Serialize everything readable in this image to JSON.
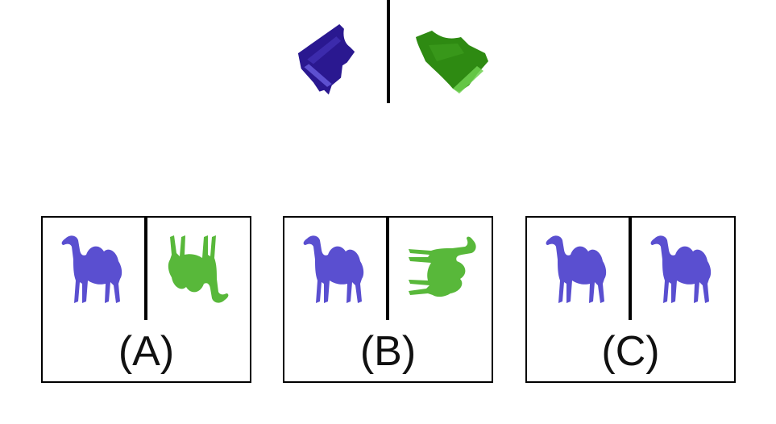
{
  "colors": {
    "blue": "#3a1fa0",
    "blue_light": "#5a4fd0",
    "green": "#2e8a12",
    "green_light": "#5fbf40",
    "camel_blue": "#5a4fd0",
    "camel_green": "#58b83a"
  },
  "reference": {
    "left_icon": "grand-piano-icon",
    "right_icon": "grand-piano-icon"
  },
  "options": [
    {
      "label": "(A)",
      "left_icon": "camel-icon",
      "right_icon": "camel-icon"
    },
    {
      "label": "(B)",
      "left_icon": "camel-icon",
      "right_icon": "camel-icon"
    },
    {
      "label": "(C)",
      "left_icon": "camel-icon",
      "right_icon": "camel-icon"
    }
  ]
}
